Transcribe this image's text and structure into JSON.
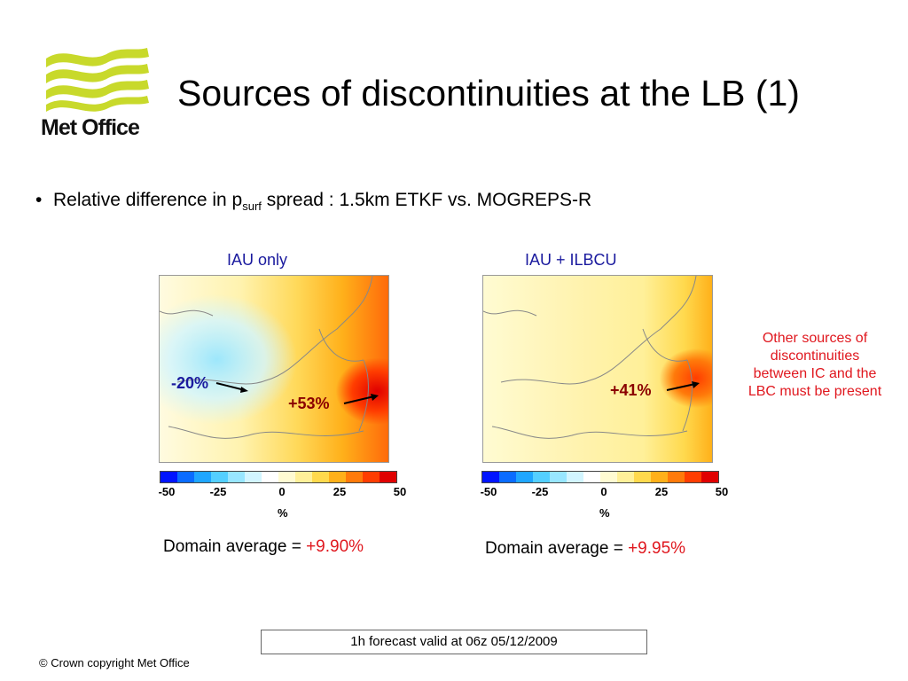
{
  "slide": {
    "title": "Sources of discontinuities at the LB (1)",
    "logo_text": "Met Office",
    "bullet": {
      "text_before": "Relative difference in p",
      "subscript": "surf",
      "text_after": " spread : 1.5km ETKF vs. MOGREPS-R"
    },
    "left_panel": {
      "title": "IAU only",
      "annotation_neg": "-20%",
      "annotation_pos": "+53%",
      "colorbar_ticks": [
        "-50",
        "-25",
        "0",
        "25",
        "50"
      ],
      "colorbar_unit": "%",
      "domain_average_label": "Domain average = ",
      "domain_average_value": "+9.90%"
    },
    "right_panel": {
      "title": "IAU + ILBCU",
      "annotation_pos": "+41%",
      "colorbar_ticks": [
        "-50",
        "-25",
        "0",
        "25",
        "50"
      ],
      "colorbar_unit": "%",
      "domain_average_label": "Domain average = ",
      "domain_average_value": "+9.95%"
    },
    "side_note": "Other sources of discontinuities between IC and the LBC must be present",
    "valid_time": "1h forecast valid at 06z 05/12/2009",
    "copyright": "© Crown copyright   Met Office"
  },
  "colors": {
    "title_blue": "#1a1a9e",
    "highlight_red": "#e0181f",
    "logo_green": "#c8d92b",
    "colorbar": [
      "#0014ff",
      "#0a6cff",
      "#1fa6ff",
      "#54cfff",
      "#98e6ff",
      "#d2f5ff",
      "#ffffff",
      "#fffbd2",
      "#fff099",
      "#ffd94d",
      "#ffb01a",
      "#ff7a0a",
      "#ff3d00",
      "#e00000"
    ]
  }
}
